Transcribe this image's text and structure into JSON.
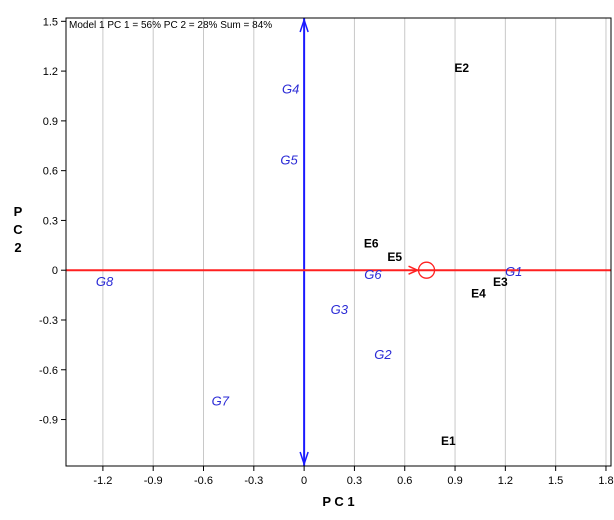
{
  "chart_data": {
    "type": "scatter",
    "title": "Model 1 PC 1 = 56% PC 2 = 28% Sum = 84%",
    "xlabel": "P C 1",
    "ylabel_lines": [
      "P",
      "C",
      "2"
    ],
    "xlim": [
      -1.42,
      1.83
    ],
    "ylim": [
      -1.18,
      1.52
    ],
    "x_ticks": [
      -1.2,
      -0.9,
      -0.6,
      -0.3,
      0,
      0.3,
      0.6,
      0.9,
      1.2,
      1.5,
      1.8
    ],
    "x_tick_labels": [
      "-1.2",
      "-0.9",
      "-0.6",
      "-0.3",
      "0",
      "0.3",
      "0.6",
      "0.9",
      "1.2",
      "1.5",
      "1.8"
    ],
    "y_ticks": [
      1.5,
      1.2,
      0.9,
      0.6,
      0.3,
      0,
      -0.3,
      -0.6,
      -0.9
    ],
    "y_tick_labels": [
      "1.5",
      "1.2",
      "0.9",
      "0.6",
      "0.3",
      "0",
      "-0.3",
      "-0.6",
      "-0.9"
    ],
    "grid": "vertical lines",
    "series": [
      {
        "name": "",
        "kind": "genotype",
        "color": "#2b2bd6",
        "points": [
          {
            "label": "G1",
            "x": 1.25,
            "y": -0.01
          },
          {
            "label": "G2",
            "x": 0.47,
            "y": -0.51
          },
          {
            "label": "G3",
            "x": 0.21,
            "y": -0.24
          },
          {
            "label": "G4",
            "x": -0.08,
            "y": 1.09
          },
          {
            "label": "G5",
            "x": -0.09,
            "y": 0.66
          },
          {
            "label": "G6",
            "x": 0.41,
            "y": -0.03
          },
          {
            "label": "G7",
            "x": -0.5,
            "y": -0.79
          },
          {
            "label": "G8",
            "x": -1.19,
            "y": -0.07
          }
        ]
      },
      {
        "name": "",
        "kind": "environment",
        "color": "#000000",
        "points": [
          {
            "label": "E1",
            "x": 0.86,
            "y": -1.03
          },
          {
            "label": "E2",
            "x": 0.94,
            "y": 1.22
          },
          {
            "label": "E3",
            "x": 1.17,
            "y": -0.07
          },
          {
            "label": "E4",
            "x": 1.04,
            "y": -0.14
          },
          {
            "label": "E5",
            "x": 0.54,
            "y": 0.08
          },
          {
            "label": "E6",
            "x": 0.4,
            "y": 0.16
          }
        ]
      }
    ],
    "reference_lines": {
      "vertical_axis_color": "#1a1aff",
      "horizontal_axis_color": "#ff2020"
    },
    "average_marker": {
      "x": 0.73,
      "y": 0,
      "color": "#ff2020"
    }
  }
}
